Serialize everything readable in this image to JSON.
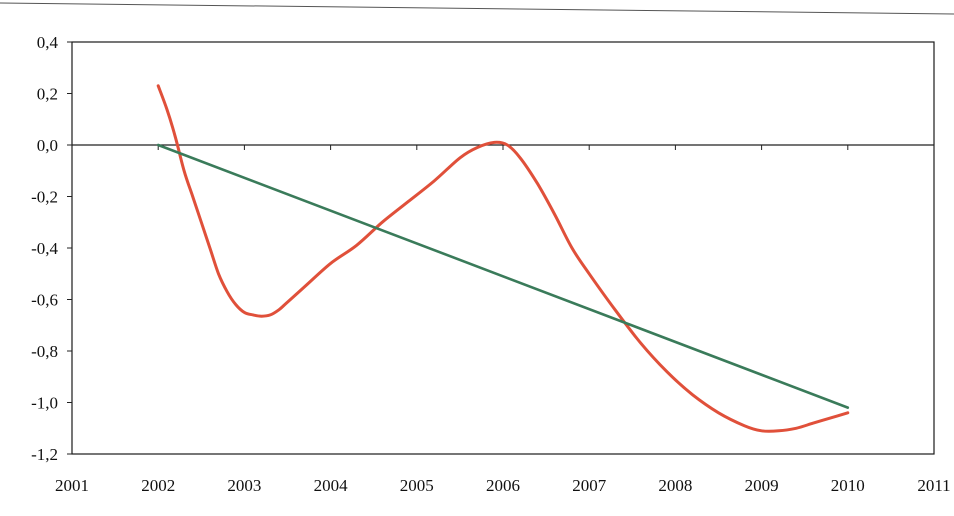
{
  "chart_data": {
    "type": "line",
    "title": "",
    "xlabel": "",
    "ylabel": "",
    "xlim": [
      2001,
      2011
    ],
    "ylim": [
      -1.2,
      0.4
    ],
    "x_ticks": [
      2001,
      2002,
      2003,
      2004,
      2005,
      2006,
      2007,
      2008,
      2009,
      2010,
      2011
    ],
    "x_tick_labels": [
      "2001",
      "2002",
      "2003",
      "2004",
      "2005",
      "2006",
      "2007",
      "2008",
      "2009",
      "2010",
      "2011"
    ],
    "y_ticks": [
      0.4,
      0.2,
      0.0,
      -0.2,
      -0.4,
      -0.6,
      -0.8,
      -1.0,
      -1.2
    ],
    "y_tick_labels": [
      "0,4",
      "0,2",
      "0,0",
      "-0,2",
      "-0,4",
      "-0,6",
      "-0,8",
      "-1,0",
      "-1,2"
    ],
    "grid": false,
    "legend": "none",
    "zero_line": true,
    "series": [
      {
        "color": "#e0503a",
        "x": [
          2002.0,
          2002.1,
          2002.2,
          2002.3,
          2002.4,
          2002.5,
          2002.6,
          2002.7,
          2002.8,
          2002.9,
          2003.0,
          2003.1,
          2003.2,
          2003.3,
          2003.4,
          2003.5,
          2003.7,
          2004.0,
          2004.3,
          2004.6,
          2004.9,
          2005.2,
          2005.5,
          2005.7,
          2005.9,
          2006.05,
          2006.2,
          2006.4,
          2006.6,
          2006.8,
          2007.0,
          2007.3,
          2007.6,
          2007.9,
          2008.2,
          2008.5,
          2008.8,
          2009.0,
          2009.2,
          2009.4,
          2009.6,
          2009.8,
          2010.0
        ],
        "y": [
          0.23,
          0.14,
          0.03,
          -0.1,
          -0.2,
          -0.3,
          -0.4,
          -0.5,
          -0.57,
          -0.62,
          -0.65,
          -0.66,
          -0.665,
          -0.66,
          -0.64,
          -0.61,
          -0.55,
          -0.46,
          -0.39,
          -0.3,
          -0.22,
          -0.14,
          -0.05,
          -0.01,
          0.01,
          0.0,
          -0.05,
          -0.15,
          -0.27,
          -0.4,
          -0.5,
          -0.64,
          -0.77,
          -0.88,
          -0.97,
          -1.04,
          -1.09,
          -1.11,
          -1.11,
          -1.1,
          -1.08,
          -1.06,
          -1.04
        ]
      },
      {
        "color": "#3a7b5a",
        "x": [
          2002.0,
          2010.0
        ],
        "y": [
          0.0,
          -1.02
        ]
      }
    ]
  }
}
